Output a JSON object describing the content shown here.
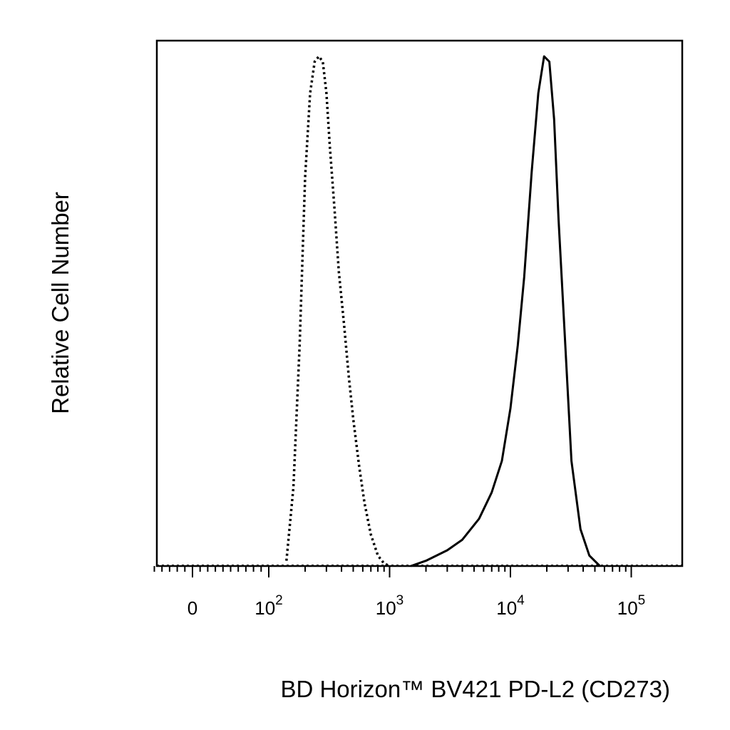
{
  "chart_data": {
    "type": "line",
    "title": "",
    "xlabel": "BD Horizon™ BV421 PD-L2 (CD273)",
    "ylabel": "Relative Cell Number",
    "x_scale": "biexponential (log above 10^2)",
    "xlim": [
      -60,
      160000
    ],
    "ylim": [
      0,
      1.0
    ],
    "grid": false,
    "legend": "none",
    "x_tick_labels": [
      {
        "base": "0",
        "exp": ""
      },
      {
        "base": "10",
        "exp": "2"
      },
      {
        "base": "10",
        "exp": "3"
      },
      {
        "base": "10",
        "exp": "4"
      },
      {
        "base": "10",
        "exp": "5"
      }
    ],
    "series": [
      {
        "style": "dotted",
        "color": "#000000",
        "x": [
          140,
          160,
          180,
          200,
          220,
          240,
          260,
          280,
          300,
          320,
          350,
          380,
          420,
          460,
          500,
          560,
          620,
          700,
          800,
          900,
          1000
        ],
        "y": [
          0.01,
          0.15,
          0.42,
          0.74,
          0.9,
          0.96,
          0.97,
          0.96,
          0.9,
          0.8,
          0.68,
          0.56,
          0.46,
          0.36,
          0.28,
          0.19,
          0.12,
          0.06,
          0.02,
          0.005,
          0.0
        ]
      },
      {
        "style": "solid",
        "color": "#000000",
        "x": [
          1500,
          2000,
          3000,
          4000,
          5500,
          7000,
          8500,
          10000,
          11500,
          13000,
          15000,
          17000,
          19000,
          21000,
          23000,
          25000,
          28000,
          32000,
          38000,
          45000,
          55000
        ],
        "y": [
          0.0,
          0.01,
          0.03,
          0.05,
          0.09,
          0.14,
          0.2,
          0.3,
          0.42,
          0.55,
          0.75,
          0.9,
          0.97,
          0.96,
          0.85,
          0.66,
          0.45,
          0.2,
          0.07,
          0.02,
          0.0
        ]
      }
    ]
  }
}
